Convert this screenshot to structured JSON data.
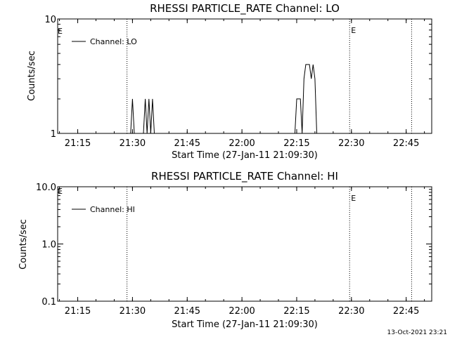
{
  "timestamp": "13-Oct-2021 23:21",
  "chart_data": [
    {
      "type": "line",
      "title": "RHESSI PARTICLE_RATE Channel: LO",
      "xlabel": "Start Time (27-Jan-11 21:09:30)",
      "ylabel": "Counts/sec",
      "yscale": "log",
      "ylim": [
        1,
        10
      ],
      "xlim": [
        "21:09:30",
        "22:52:00"
      ],
      "x_ticks": [
        "21:15",
        "21:30",
        "21:45",
        "22:00",
        "22:15",
        "22:30",
        "22:45"
      ],
      "y_ticks": [
        "1",
        "10"
      ],
      "legend": {
        "label": "Channel: LO",
        "position": "top-left"
      },
      "event_markers": [
        {
          "time": "21:28:30",
          "label": ""
        },
        {
          "time": "22:29:30",
          "label": "E"
        },
        {
          "time": "22:46:30",
          "label": ""
        }
      ],
      "left_marker_label": "E",
      "series": [
        {
          "name": "Channel: LO",
          "points": [
            [
              "21:29:30",
              1
            ],
            [
              "21:30:00",
              2
            ],
            [
              "21:30:30",
              1
            ],
            [
              "21:33:00",
              1
            ],
            [
              "21:33:30",
              2
            ],
            [
              "21:34:00",
              1
            ],
            [
              "21:34:30",
              2
            ],
            [
              "21:35:00",
              1
            ],
            [
              "21:35:30",
              2
            ],
            [
              "21:36:00",
              1
            ],
            [
              "22:14:30",
              1
            ],
            [
              "22:15:00",
              2
            ],
            [
              "22:16:00",
              2
            ],
            [
              "22:16:30",
              1
            ],
            [
              "22:17:00",
              3
            ],
            [
              "22:17:30",
              4
            ],
            [
              "22:18:30",
              4
            ],
            [
              "22:19:00",
              3
            ],
            [
              "22:19:30",
              4
            ],
            [
              "22:20:00",
              3
            ],
            [
              "22:20:30",
              1
            ]
          ]
        }
      ]
    },
    {
      "type": "line",
      "title": "RHESSI PARTICLE_RATE Channel: HI",
      "xlabel": "Start Time (27-Jan-11 21:09:30)",
      "ylabel": "Counts/sec",
      "yscale": "log",
      "ylim": [
        0.1,
        10
      ],
      "xlim": [
        "21:09:30",
        "22:52:00"
      ],
      "x_ticks": [
        "21:15",
        "21:30",
        "21:45",
        "22:00",
        "22:15",
        "22:30",
        "22:45"
      ],
      "y_ticks": [
        "0.1",
        "1.0",
        "10.0"
      ],
      "legend": {
        "label": "Channel: HI",
        "position": "top-left"
      },
      "event_markers": [
        {
          "time": "21:28:30",
          "label": ""
        },
        {
          "time": "22:29:30",
          "label": "E"
        },
        {
          "time": "22:46:30",
          "label": ""
        }
      ],
      "left_marker_label": "E",
      "series": [
        {
          "name": "Channel: HI",
          "points": []
        }
      ]
    }
  ]
}
